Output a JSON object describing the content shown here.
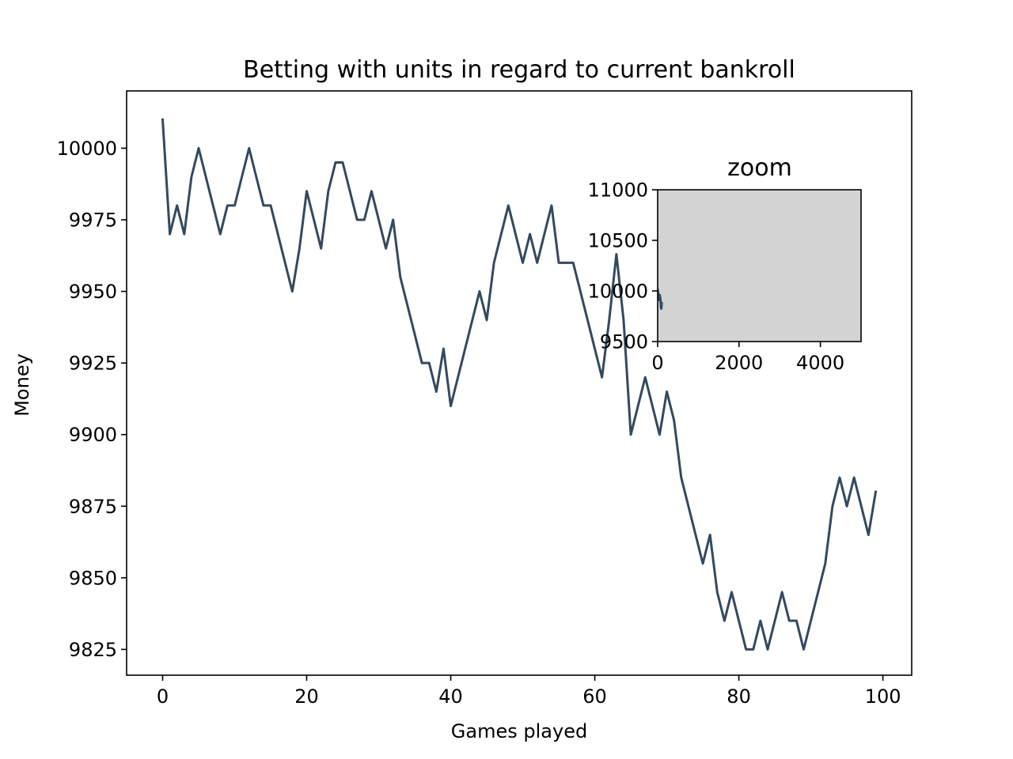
{
  "chart_data": [
    {
      "type": "line",
      "title": "Betting with units in regard to current bankroll",
      "xlabel": "Games played",
      "ylabel": "Money",
      "xlim": [
        -5,
        104
      ],
      "ylim": [
        9816,
        10020
      ],
      "xticks": [
        0,
        20,
        40,
        60,
        80,
        100
      ],
      "yticks": [
        9825,
        9850,
        9875,
        9900,
        9925,
        9950,
        9975,
        10000
      ],
      "grid": false,
      "line_color": "#34495e",
      "x": [
        0,
        1,
        2,
        3,
        4,
        5,
        6,
        7,
        8,
        9,
        10,
        11,
        12,
        13,
        14,
        15,
        16,
        17,
        18,
        19,
        20,
        21,
        22,
        23,
        24,
        25,
        26,
        27,
        28,
        29,
        30,
        31,
        32,
        33,
        34,
        35,
        36,
        37,
        38,
        39,
        40,
        41,
        42,
        43,
        44,
        45,
        46,
        47,
        48,
        49,
        50,
        51,
        52,
        53,
        54,
        55,
        56,
        57,
        58,
        59,
        60,
        61,
        62,
        63,
        64,
        65,
        66,
        67,
        68,
        69,
        70,
        71,
        72,
        73,
        74,
        75,
        76,
        77,
        78,
        79,
        80,
        81,
        82,
        83,
        84,
        85,
        86,
        87,
        88,
        89,
        90,
        91,
        92,
        93,
        94,
        95,
        96,
        97,
        98,
        99
      ],
      "y": [
        10010,
        9970,
        9980,
        9970,
        9990,
        10000,
        9990,
        9980,
        9970,
        9980,
        9980,
        9990,
        10000,
        9990,
        9980,
        9980,
        9970,
        9960,
        9950,
        9965,
        9985,
        9975,
        9965,
        9985,
        9995,
        9995,
        9985,
        9975,
        9975,
        9985,
        9975,
        9965,
        9975,
        9955,
        9945,
        9935,
        9925,
        9925,
        9915,
        9930,
        9910,
        9920,
        9930,
        9940,
        9950,
        9940,
        9960,
        9970,
        9980,
        9970,
        9960,
        9970,
        9960,
        9970,
        9980,
        9960,
        9960,
        9960,
        9950,
        9940,
        9930,
        9920,
        9940,
        9963,
        9940,
        9900,
        9910,
        9920,
        9910,
        9900,
        9915,
        9905,
        9885,
        9875,
        9865,
        9855,
        9865,
        9845,
        9835,
        9845,
        9835,
        9825,
        9825,
        9835,
        9825,
        9835,
        9845,
        9835,
        9835,
        9825,
        9835,
        9845,
        9855,
        9875,
        9885,
        9875,
        9885,
        9875,
        9865,
        9880
      ]
    },
    {
      "type": "line",
      "title": "zoom",
      "xlim": [
        0,
        5000
      ],
      "ylim": [
        9500,
        11000
      ],
      "xticks": [
        0,
        2000,
        4000
      ],
      "yticks": [
        9500,
        10000,
        10500,
        11000
      ],
      "background": "#d3d3d3",
      "line_color": "#34495e",
      "x": [
        0,
        10,
        20,
        30,
        40,
        50,
        60,
        70,
        80,
        90,
        99
      ],
      "y": [
        10010,
        9980,
        9975,
        9910,
        9960,
        9960,
        9940,
        9915,
        9845,
        9825,
        9880
      ]
    }
  ]
}
